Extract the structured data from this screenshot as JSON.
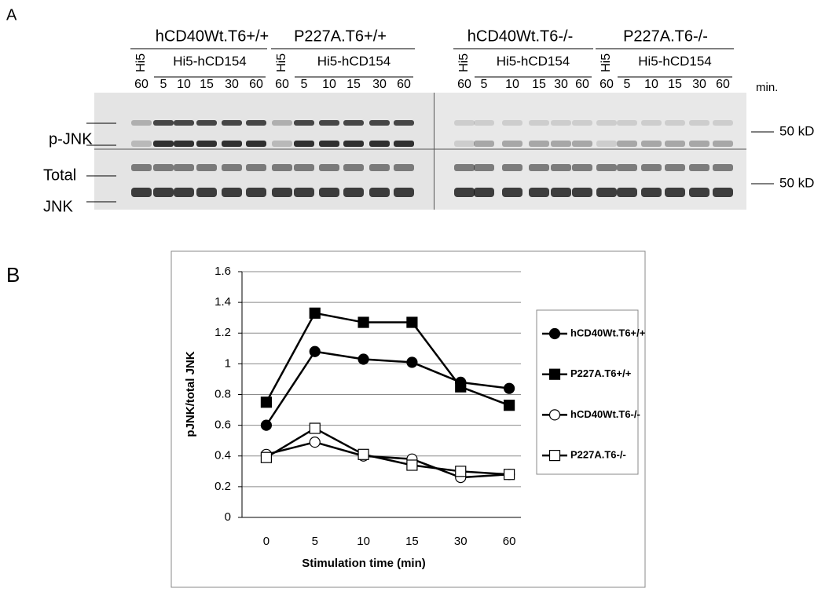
{
  "blot": {
    "panel_label": "A",
    "groups": [
      {
        "name": "hCD40Wt.T6+/+",
        "control": "Hi5",
        "stimulus": "Hi5-hCD154",
        "times": [
          "60",
          "5",
          "10",
          "15",
          "30",
          "60"
        ]
      },
      {
        "name": "P227A.T6+/+",
        "control": "Hi5",
        "stimulus": "Hi5-hCD154",
        "times": [
          "60",
          "5",
          "10",
          "15",
          "30",
          "60"
        ]
      },
      {
        "name": "hCD40Wt.T6-/-",
        "control": "Hi5",
        "stimulus": "Hi5-hCD154",
        "times": [
          "60",
          "5",
          "10",
          "15",
          "30",
          "60"
        ]
      },
      {
        "name": "P227A.T6-/-",
        "control": "Hi5",
        "stimulus": "Hi5-hCD154",
        "times": [
          "60",
          "5",
          "10",
          "15",
          "30",
          "60"
        ]
      }
    ],
    "time_unit": "min.",
    "band_labels": [
      "p-JNK",
      "Total",
      "JNK"
    ],
    "size_markers": [
      "50 kD",
      "50 kD"
    ]
  },
  "chart_data": {
    "type": "line",
    "panel_label": "B",
    "x_label": "Stimulation time (min)",
    "y_label": "pJNK/total JNK",
    "categories": [
      "0",
      "5",
      "10",
      "15",
      "30",
      "60"
    ],
    "ylim": [
      0,
      1.6
    ],
    "yticks": [
      0,
      0.2,
      0.4,
      0.6,
      0.8,
      1,
      1.2,
      1.4,
      1.6
    ],
    "grid": true,
    "legend": "right",
    "series": [
      {
        "name": "hCD40Wt.T6+/+",
        "color": "#000000",
        "marker": "circle",
        "marker_fill": "#000000",
        "values": [
          0.6,
          1.08,
          1.03,
          1.01,
          0.88,
          0.84
        ]
      },
      {
        "name": "P227A.T6+/+",
        "color": "#000000",
        "marker": "square",
        "marker_fill": "#000000",
        "values": [
          0.75,
          1.33,
          1.27,
          1.27,
          0.85,
          0.73
        ]
      },
      {
        "name": "hCD40Wt.T6-/-",
        "color": "#000000",
        "marker": "circle",
        "marker_fill": "#ffffff",
        "values": [
          0.41,
          0.49,
          0.4,
          0.38,
          0.26,
          0.28
        ]
      },
      {
        "name": "P227A.T6-/-",
        "color": "#000000",
        "marker": "square",
        "marker_fill": "#ffffff",
        "values": [
          0.39,
          0.58,
          0.41,
          0.34,
          0.3,
          0.28
        ]
      }
    ]
  }
}
